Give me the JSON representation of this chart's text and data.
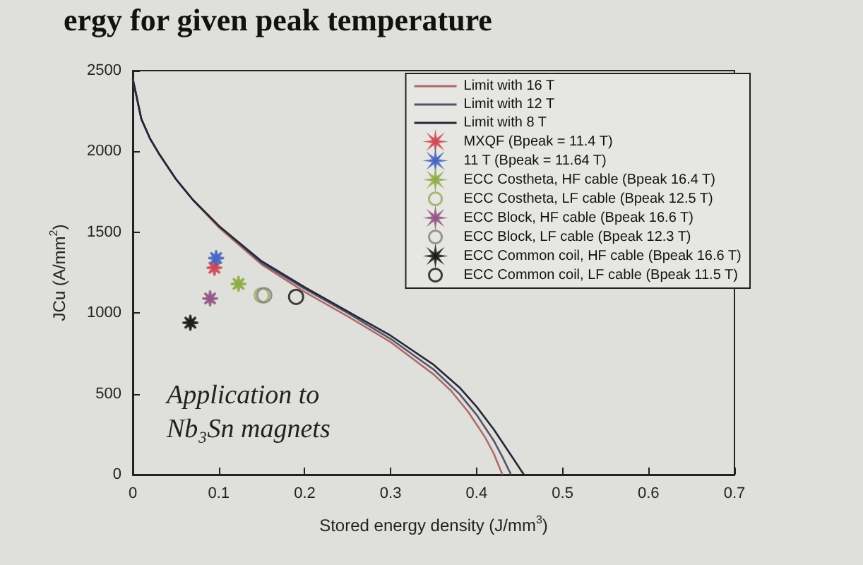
{
  "chart_data": {
    "type": "line",
    "title": "ergy for given peak temperature",
    "xlabel": "Stored energy density (J/mm$^{3}$)",
    "ylabel": "JCu (A/mm$^{2}$)",
    "annotations": [
      "Application to\nNb₃Sn magnets"
    ],
    "xlim": [
      0,
      0.7
    ],
    "xticks": [
      0,
      0.1,
      0.2,
      0.3,
      0.4,
      0.5,
      0.6,
      0.7
    ],
    "ylim": [
      0,
      2500
    ],
    "yticks": [
      0,
      500,
      1000,
      1500,
      2000,
      2500
    ],
    "legend": "top right",
    "line_style": "solid",
    "series": [
      {
        "name": "Limit with 16 T",
        "color": "#b06a6a",
        "x": [
          0,
          0.01,
          0.02,
          0.03,
          0.05,
          0.07,
          0.1,
          0.15,
          0.2,
          0.25,
          0.3,
          0.35,
          0.37,
          0.39,
          0.41,
          0.42,
          0.43
        ],
        "values": [
          2450,
          2200,
          2080,
          1990,
          1830,
          1700,
          1530,
          1300,
          1130,
          980,
          820,
          620,
          520,
          390,
          230,
          130,
          0
        ]
      },
      {
        "name": "Limit with 12 T",
        "color": "#55556a",
        "x": [
          0,
          0.01,
          0.02,
          0.03,
          0.05,
          0.07,
          0.1,
          0.15,
          0.2,
          0.25,
          0.3,
          0.35,
          0.38,
          0.4,
          0.42,
          0.43,
          0.44
        ],
        "values": [
          2450,
          2200,
          2080,
          1990,
          1830,
          1700,
          1540,
          1310,
          1150,
          1000,
          840,
          650,
          500,
          370,
          210,
          110,
          0
        ]
      },
      {
        "name": "Limit with 8 T",
        "color": "#262638",
        "x": [
          0,
          0.01,
          0.02,
          0.03,
          0.05,
          0.07,
          0.1,
          0.15,
          0.2,
          0.25,
          0.3,
          0.35,
          0.38,
          0.4,
          0.42,
          0.44,
          0.455
        ],
        "values": [
          2450,
          2200,
          2080,
          1990,
          1830,
          1700,
          1540,
          1320,
          1160,
          1010,
          860,
          680,
          540,
          420,
          280,
          120,
          0
        ]
      },
      {
        "name": "MXQF (Bpeak = 11.4 T)",
        "type": "scatter",
        "marker": "star",
        "color": "#d04050",
        "x": [
          0.095
        ],
        "values": [
          1280
        ]
      },
      {
        "name": "11 T (Bpeak = 11.64 T)",
        "type": "scatter",
        "marker": "star",
        "color": "#4060c0",
        "x": [
          0.097
        ],
        "values": [
          1340
        ]
      },
      {
        "name": "ECC Costheta, HF cable (Bpeak 16.4 T)",
        "type": "scatter",
        "marker": "star",
        "color": "#8aaa40",
        "x": [
          0.123
        ],
        "values": [
          1180
        ]
      },
      {
        "name": "ECC Costheta, LF cable (Bpeak 12.5 T)",
        "type": "scatter",
        "marker": "circle",
        "color": "#9ea85a",
        "x": [
          0.15
        ],
        "values": [
          1110
        ]
      },
      {
        "name": "ECC Block, HF cable (Bpeak 16.6 T)",
        "type": "scatter",
        "marker": "star",
        "color": "#905080",
        "x": [
          0.09
        ],
        "values": [
          1090
        ]
      },
      {
        "name": "ECC Block, LF cable (Bpeak 12.3 T)",
        "type": "scatter",
        "marker": "circle",
        "color": "#808080",
        "x": [
          0.153
        ],
        "values": [
          1110
        ]
      },
      {
        "name": "ECC Common coil, HF cable (Bpeak 16.6 T)",
        "type": "scatter",
        "marker": "star",
        "color": "#111111",
        "x": [
          0.067
        ],
        "values": [
          940
        ]
      },
      {
        "name": "ECC Common coil, LF cable (Bpeak 11.5 T)",
        "type": "scatter",
        "marker": "circle",
        "color": "#111111",
        "x": [
          0.19
        ],
        "values": [
          1100
        ]
      }
    ]
  }
}
